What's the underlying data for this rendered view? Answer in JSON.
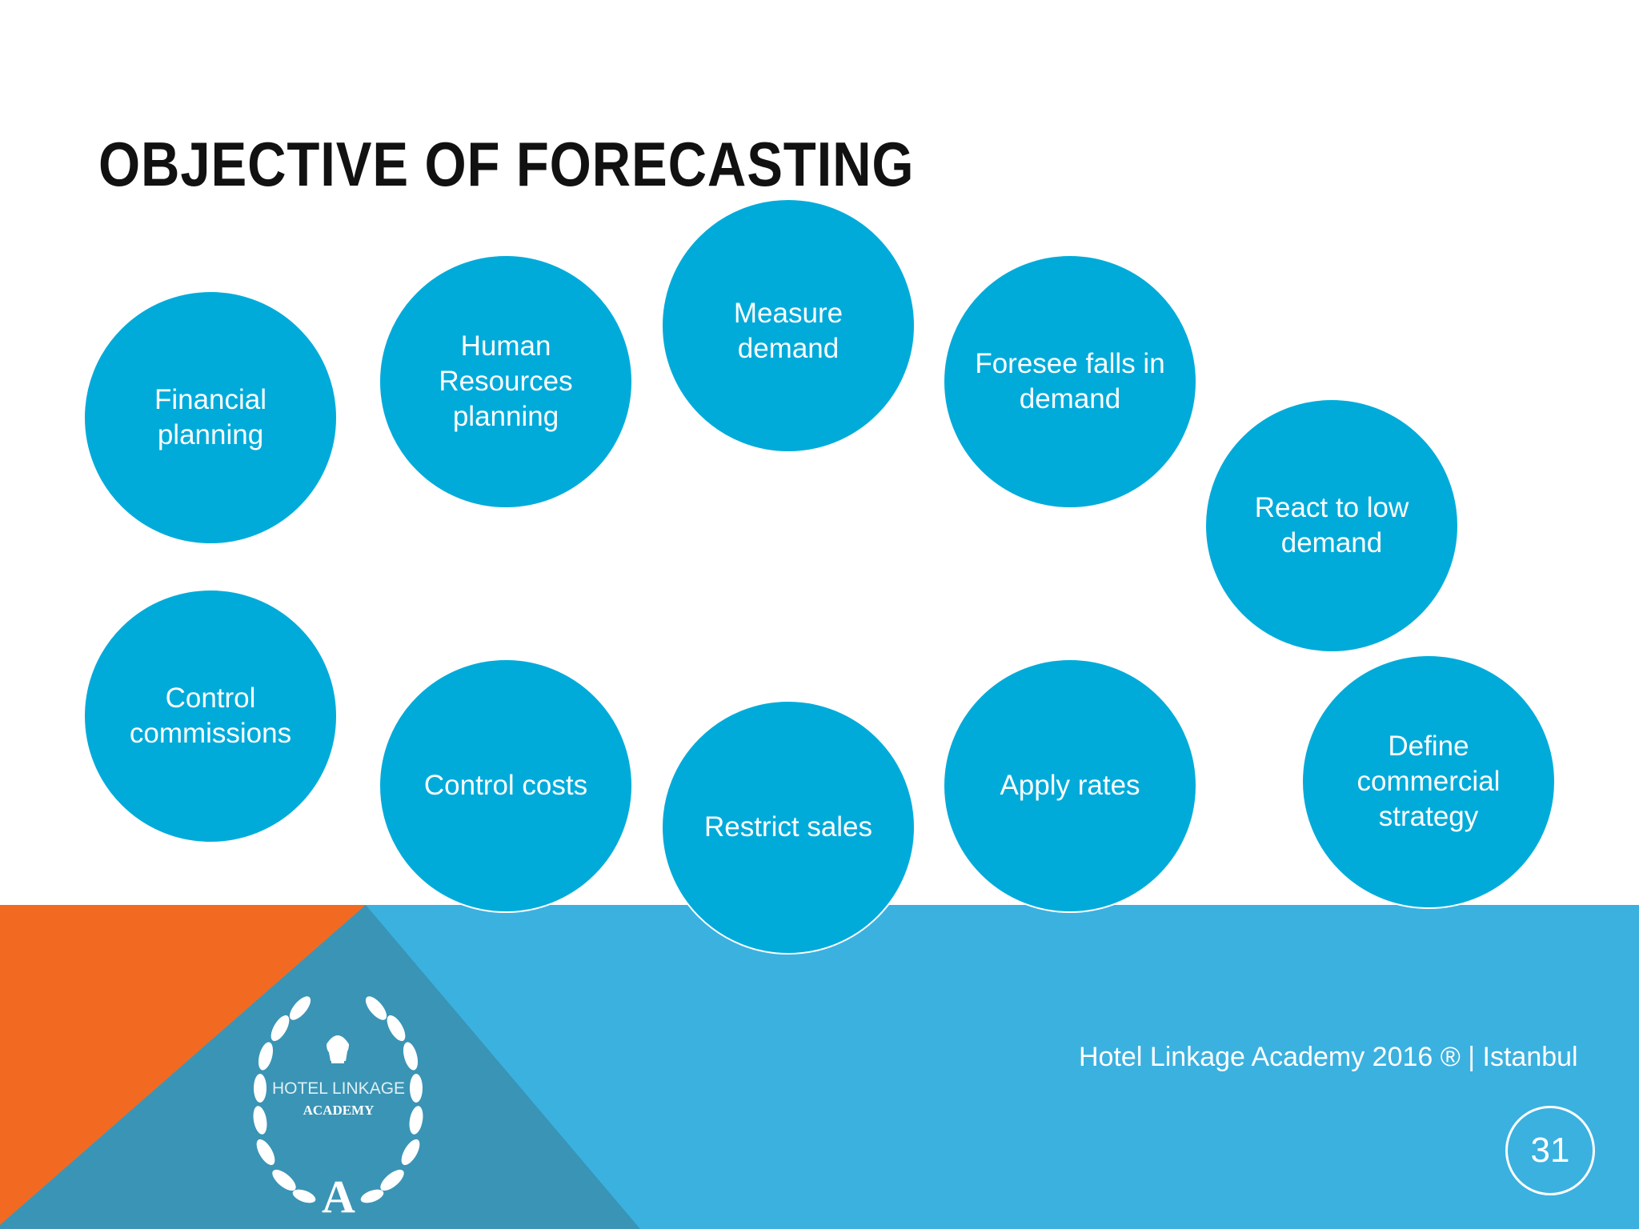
{
  "slide": {
    "title": "OBJECTIVE OF FORECASTING",
    "objectives": [
      "Financial planning",
      "Human Resources planning",
      "Measure demand",
      "Foresee falls in demand",
      "React to low demand",
      "Control commissions",
      "Control costs",
      "Restrict sales",
      "Apply rates",
      "Define commercial strategy"
    ],
    "footer": "Hotel Linkage Academy 2016 ® | Istanbul",
    "page_number": "31",
    "logo": {
      "line1": "HOTEL LINKAGE",
      "line2": "ACADEMY",
      "mark": "A"
    }
  },
  "colors": {
    "circle": "#00ABDA",
    "band": "#3BB1E0",
    "band_dark": "#3A94B5",
    "orange": "#F26A21"
  }
}
